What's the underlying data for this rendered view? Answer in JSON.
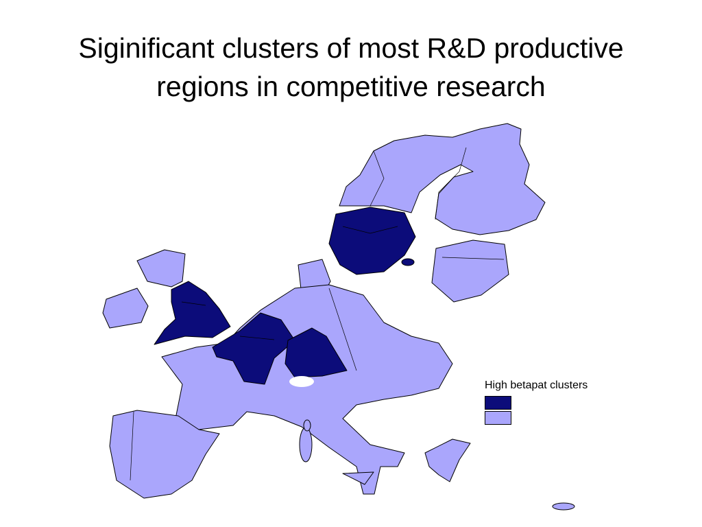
{
  "title": "Siginificant clusters of most R&D productive regions in competitive research",
  "legend": {
    "title": "High betapat clusters"
  }
}
